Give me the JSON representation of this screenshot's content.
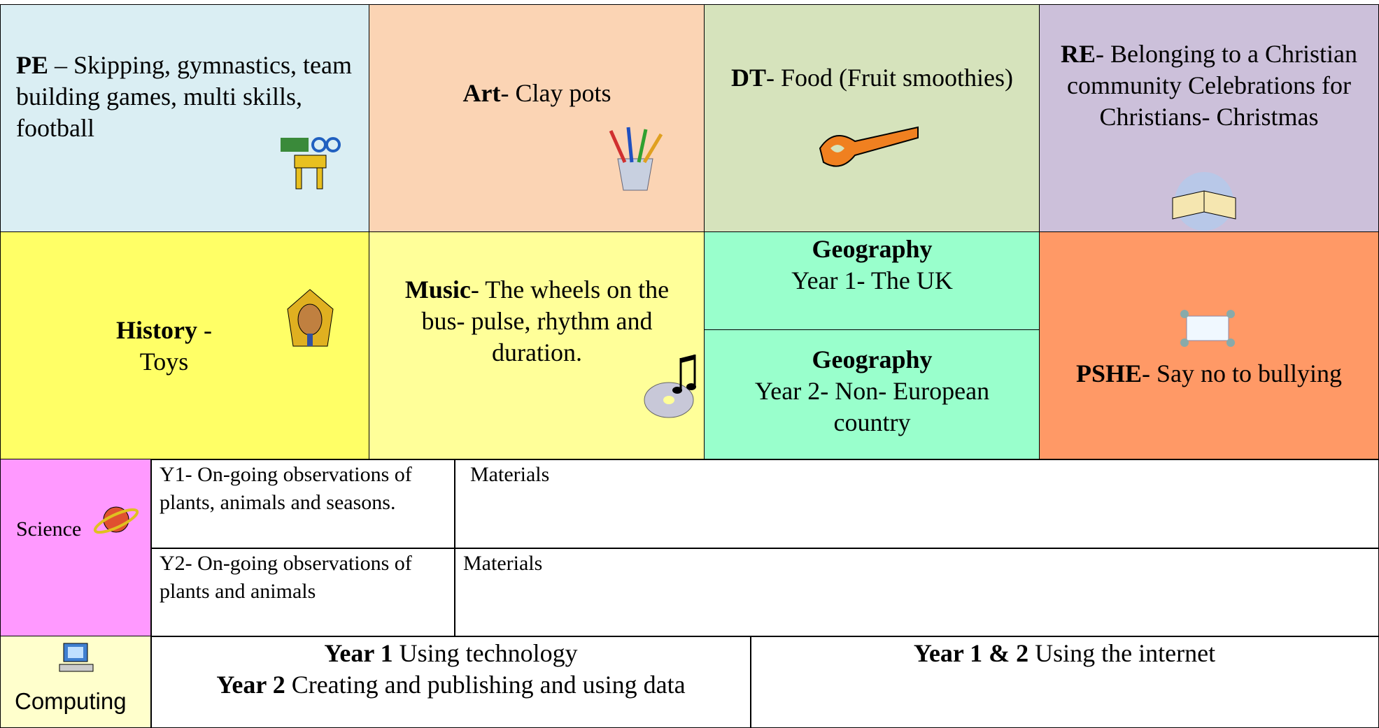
{
  "row1": [
    {
      "subject": "PE",
      "text": " – Skipping, gymnastics, team building games, multi skills, football"
    },
    {
      "subject": "Art",
      "text": "- Clay pots"
    },
    {
      "subject": "DT",
      "text": "- Food (Fruit smoothies)"
    },
    {
      "subject": "RE",
      "text": "- Belonging to a Christian community Celebrations for Christians- Christmas"
    }
  ],
  "history": {
    "subject": "History",
    "text": " - Toys"
  },
  "music": {
    "subject": "Music",
    "text": "- The wheels on the bus- pulse, rhythm and duration."
  },
  "geography": [
    {
      "title": "Geography",
      "text": "Year 1- The UK"
    },
    {
      "title": "Geography",
      "text": "Year 2- Non- European country"
    }
  ],
  "pshe": {
    "subject": "PSHE",
    "text": "- Say no to bullying"
  },
  "science": {
    "label": "Science",
    "rows": [
      [
        "Y1- On-going observations of plants, animals and seasons.",
        "Materials"
      ],
      [
        "Y2- On-going observations of plants and animals",
        "Materials"
      ]
    ]
  },
  "computing": {
    "label": "Computing",
    "cells": [
      [
        {
          "bold": "Year 1",
          "text": " Using technology"
        },
        {
          "bold": "Year 2",
          "text": " Creating and publishing and using data"
        }
      ],
      [
        {
          "bold": "Year 1 & 2",
          "text": " Using the internet"
        }
      ]
    ]
  }
}
